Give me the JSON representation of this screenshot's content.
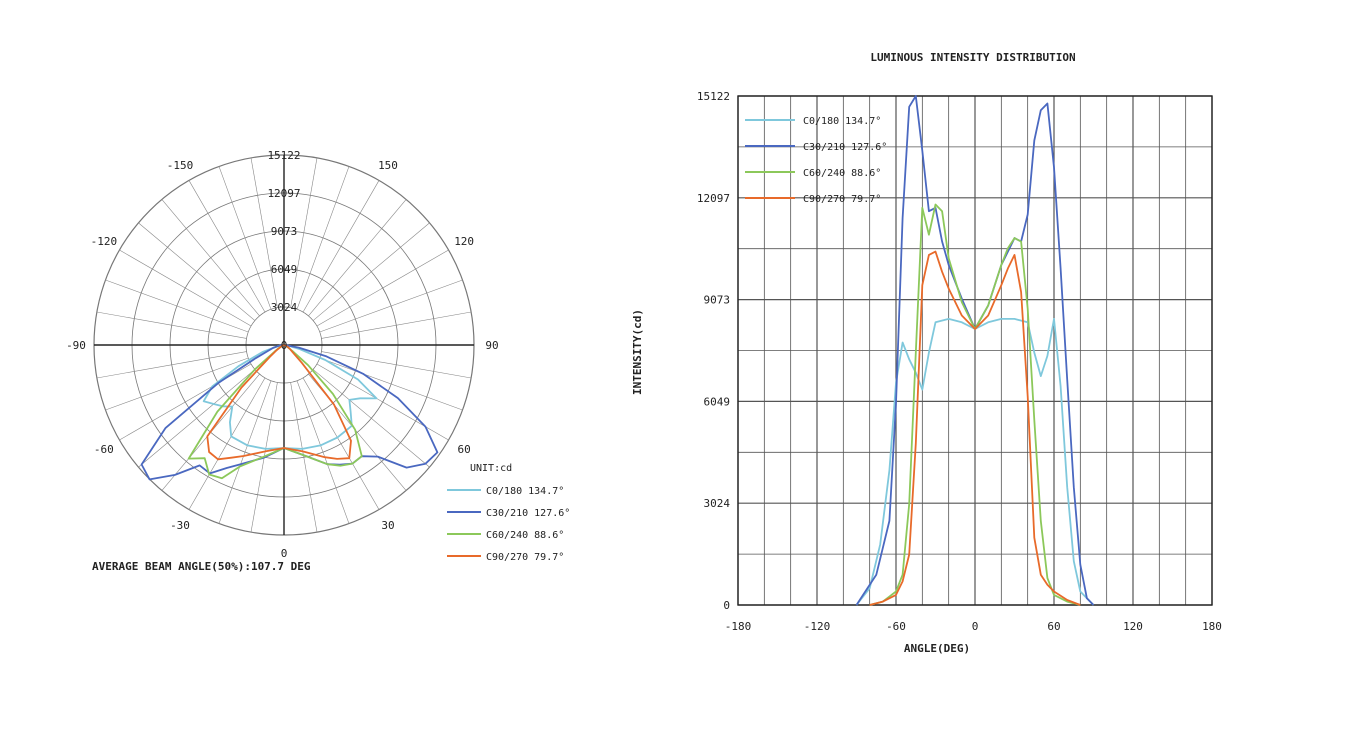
{
  "chart_data": [
    {
      "type": "polar",
      "subtitle": "AVERAGE BEAM ANGLE(50%):107.7 DEG",
      "radial_ticks": [
        "15122",
        "12097",
        "9073",
        "6049",
        "3024",
        "0"
      ],
      "rlim": [
        0,
        15122
      ],
      "angle_ticks": [
        {
          "label": "0",
          "deg": 0
        },
        {
          "label": "30",
          "deg": 30
        },
        {
          "label": "60",
          "deg": 60
        },
        {
          "label": "90",
          "deg": 90
        },
        {
          "label": "120",
          "deg": 120
        },
        {
          "label": "150",
          "deg": 150
        },
        {
          "label": "-150",
          "deg": -150
        },
        {
          "label": "-120",
          "deg": -120
        },
        {
          "label": "-90",
          "deg": -90
        },
        {
          "label": "-60",
          "deg": -60
        },
        {
          "label": "-30",
          "deg": -30
        }
      ],
      "legend": {
        "unit_label": "UNIT:cd",
        "placement": "bottom-right",
        "entries": [
          "C0/180 134.7°",
          "C30/210 127.6°",
          "C60/240 88.6°",
          "C90/270 79.7°"
        ]
      },
      "grid": true
    },
    {
      "type": "line",
      "title": "LUMINOUS INTENSITY DISTRIBUTION",
      "xlabel": "ANGLE(DEG)",
      "ylabel": "INTENSITY(cd)",
      "xlim": [
        -180,
        180
      ],
      "ylim": [
        0,
        15122
      ],
      "xticks": [
        "-180",
        "-120",
        "-60",
        "0",
        "60",
        "120",
        "180"
      ],
      "yticks": [
        "0",
        "3024",
        "6049",
        "9073",
        "12097",
        "15122"
      ],
      "grid": true,
      "legend_placement": "top-left",
      "series": [
        {
          "name": "C0/180 134.7°",
          "color": "#7fc8dc",
          "x": [
            -90,
            -80,
            -72,
            -65,
            -60,
            -55,
            -50,
            -45,
            -40,
            -35,
            -30,
            -20,
            -10,
            0,
            10,
            20,
            30,
            40,
            45,
            50,
            55,
            60,
            65,
            70,
            75,
            80,
            90
          ],
          "y": [
            0,
            500,
            1800,
            4000,
            6600,
            7800,
            7300,
            6900,
            6400,
            7500,
            8400,
            8500,
            8400,
            8200,
            8400,
            8500,
            8500,
            8400,
            7500,
            6800,
            7400,
            8500,
            6500,
            3500,
            1300,
            400,
            0
          ]
        },
        {
          "name": "C30/210 127.6°",
          "color": "#4a68c0",
          "x": [
            -90,
            -85,
            -75,
            -65,
            -60,
            -55,
            -50,
            -45,
            -40,
            -35,
            -30,
            -25,
            -20,
            -10,
            0,
            10,
            20,
            25,
            30,
            35,
            40,
            45,
            50,
            55,
            60,
            65,
            70,
            75,
            80,
            85,
            90
          ],
          "y": [
            0,
            300,
            900,
            2500,
            6000,
            11500,
            14800,
            15122,
            13500,
            11700,
            11800,
            10800,
            10100,
            9100,
            8200,
            8900,
            10100,
            10500,
            10900,
            10800,
            11600,
            13800,
            14700,
            14900,
            13000,
            10000,
            6700,
            3500,
            1200,
            200,
            0
          ]
        },
        {
          "name": "C60/240 88.6°",
          "color": "#8cc85a",
          "x": [
            -80,
            -70,
            -60,
            -55,
            -50,
            -45,
            -40,
            -35,
            -30,
            -25,
            -20,
            -10,
            0,
            10,
            20,
            25,
            30,
            35,
            40,
            45,
            50,
            55,
            60,
            70,
            80
          ],
          "y": [
            0,
            100,
            400,
            900,
            3000,
            7500,
            11800,
            11000,
            11900,
            11700,
            10300,
            9000,
            8200,
            8900,
            10100,
            10600,
            10900,
            10800,
            8800,
            5500,
            2500,
            800,
            300,
            100,
            0
          ]
        },
        {
          "name": "C90/270 79.7°",
          "color": "#e86a2a",
          "x": [
            -80,
            -70,
            -60,
            -55,
            -50,
            -45,
            -40,
            -35,
            -30,
            -25,
            -20,
            -10,
            0,
            10,
            20,
            25,
            30,
            35,
            40,
            45,
            50,
            55,
            60,
            70,
            80
          ],
          "y": [
            0,
            100,
            300,
            700,
            1500,
            4800,
            9500,
            10400,
            10500,
            9900,
            9400,
            8600,
            8200,
            8600,
            9500,
            10000,
            10400,
            9300,
            6200,
            2000,
            900,
            600,
            400,
            150,
            0
          ]
        }
      ]
    }
  ]
}
